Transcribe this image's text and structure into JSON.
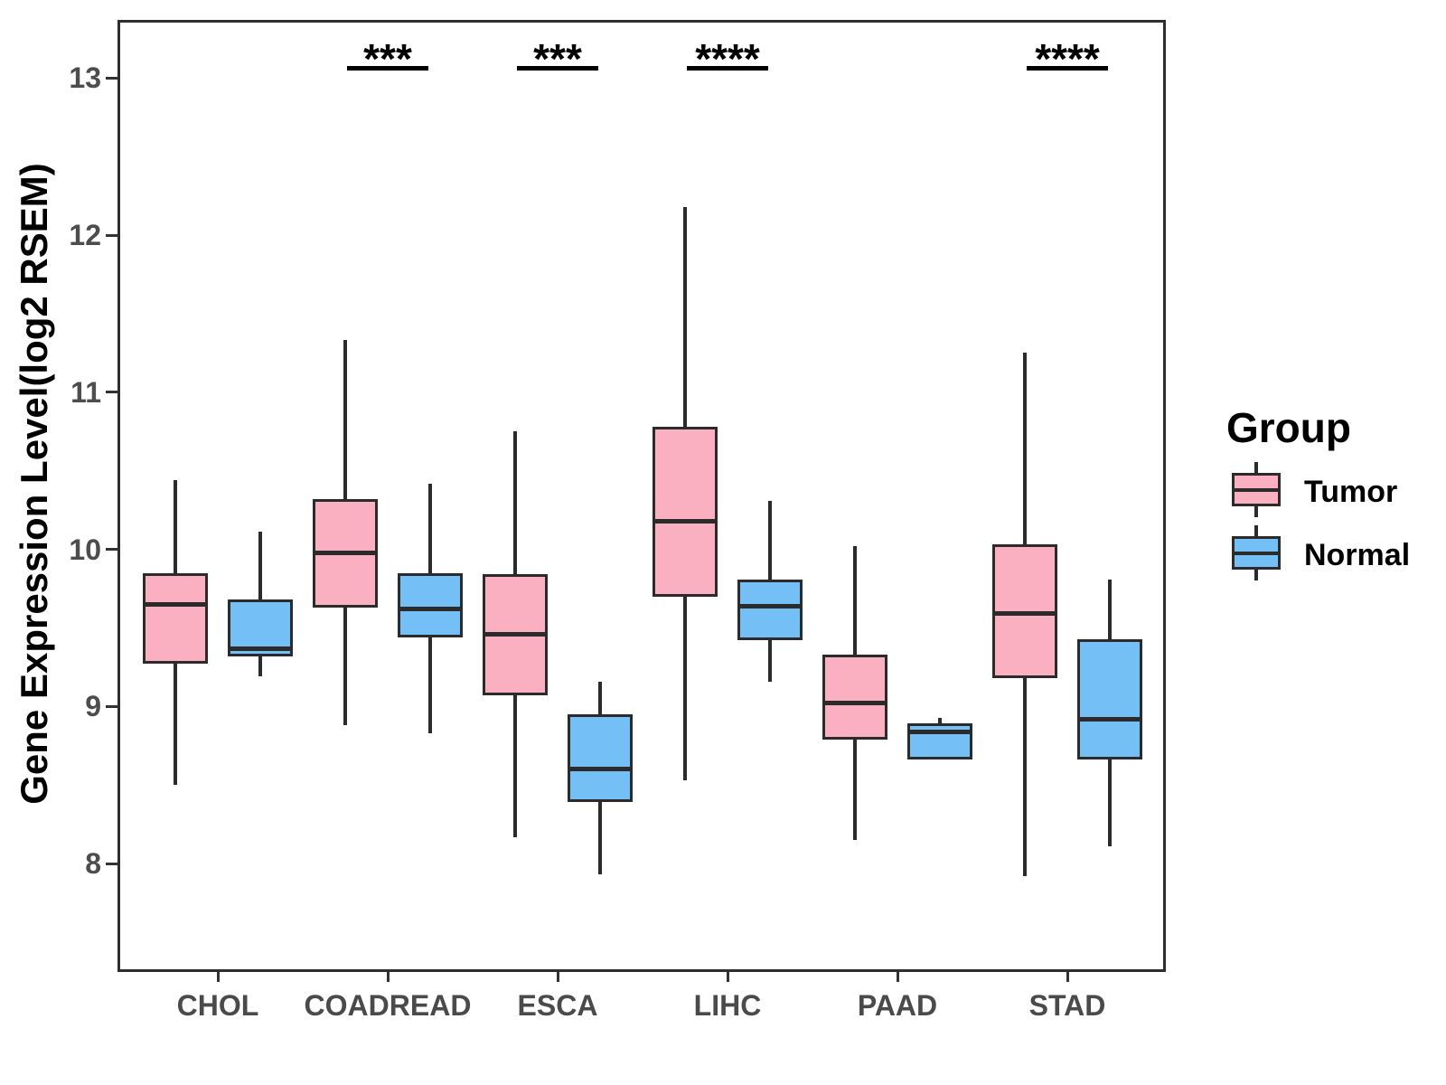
{
  "figure": {
    "y_axis_title": "Gene Expression Level(log2 RSEM)"
  },
  "legend": {
    "title": "Group",
    "items": [
      {
        "label": "Tumor",
        "color": "#FBB0C1"
      },
      {
        "label": "Normal",
        "color": "#74BFF5"
      }
    ]
  },
  "chart_data": {
    "type": "grouped_boxplot",
    "title": "",
    "xlabel": "",
    "ylabel": "Gene Expression Level(log2 RSEM)",
    "categories": [
      "CHOL",
      "COADREAD",
      "ESCA",
      "LIHC",
      "PAAD",
      "STAD"
    ],
    "groups": [
      "Tumor",
      "Normal"
    ],
    "colors": {
      "Tumor": "#FBB0C1",
      "Normal": "#74BFF5",
      "line": "#2b2b2b"
    },
    "y_ticks": [
      8,
      9,
      10,
      11,
      12,
      13
    ],
    "ylim": [
      7.31,
      13.37
    ],
    "grid": "off",
    "legend_position": "right",
    "series": [
      {
        "category": "CHOL",
        "group": "Tumor",
        "min": 8.5,
        "q1": 9.27,
        "median": 9.65,
        "q3": 9.85,
        "max": 10.44
      },
      {
        "category": "CHOL",
        "group": "Normal",
        "min": 9.19,
        "q1": 9.32,
        "median": 9.37,
        "q3": 9.68,
        "max": 10.11
      },
      {
        "category": "COADREAD",
        "group": "Tumor",
        "min": 8.88,
        "q1": 9.63,
        "median": 9.98,
        "q3": 10.32,
        "max": 11.33
      },
      {
        "category": "COADREAD",
        "group": "Normal",
        "min": 8.83,
        "q1": 9.44,
        "median": 9.62,
        "q3": 9.85,
        "max": 10.42
      },
      {
        "category": "ESCA",
        "group": "Tumor",
        "min": 8.17,
        "q1": 9.07,
        "median": 9.46,
        "q3": 9.84,
        "max": 10.75
      },
      {
        "category": "ESCA",
        "group": "Normal",
        "min": 7.93,
        "q1": 8.39,
        "median": 8.6,
        "q3": 8.95,
        "max": 9.16
      },
      {
        "category": "LIHC",
        "group": "Tumor",
        "min": 8.53,
        "q1": 9.7,
        "median": 10.18,
        "q3": 10.78,
        "max": 12.18
      },
      {
        "category": "LIHC",
        "group": "Normal",
        "min": 9.16,
        "q1": 9.42,
        "median": 9.64,
        "q3": 9.81,
        "max": 10.31
      },
      {
        "category": "PAAD",
        "group": "Tumor",
        "min": 8.15,
        "q1": 8.79,
        "median": 9.02,
        "q3": 9.33,
        "max": 10.02
      },
      {
        "category": "PAAD",
        "group": "Normal",
        "min": 8.66,
        "q1": 8.66,
        "median": 8.84,
        "q3": 8.89,
        "max": 8.93
      },
      {
        "category": "STAD",
        "group": "Tumor",
        "min": 7.92,
        "q1": 9.18,
        "median": 9.59,
        "q3": 10.03,
        "max": 11.25
      },
      {
        "category": "STAD",
        "group": "Normal",
        "min": 8.11,
        "q1": 8.66,
        "median": 8.92,
        "q3": 9.43,
        "max": 9.81
      }
    ],
    "annotations": [
      {
        "category": "COADREAD",
        "label": "***"
      },
      {
        "category": "ESCA",
        "label": "***"
      },
      {
        "category": "LIHC",
        "label": "****"
      },
      {
        "category": "STAD",
        "label": "****"
      }
    ]
  }
}
